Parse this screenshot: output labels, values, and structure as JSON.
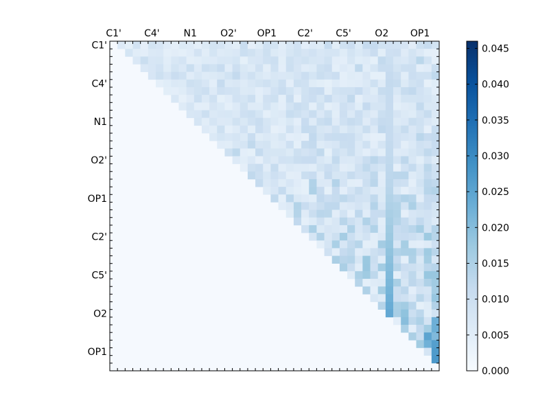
{
  "chart_data": {
    "type": "heatmap",
    "title": "",
    "n": 43,
    "x_tick_labels": [
      "C1'",
      "C4'",
      "N1",
      "O2'",
      "OP1",
      "C2'",
      "C5'",
      "O2",
      "OP1"
    ],
    "y_tick_labels": [
      "C1'",
      "C4'",
      "N1",
      "O2'",
      "OP1",
      "C2'",
      "C5'",
      "O2",
      "OP1"
    ],
    "tick_label_every": 5,
    "upper_triangle_only": true,
    "colormap": "Blues",
    "vmin": 0.0,
    "vmax": 0.046,
    "colorbar_ticks": [
      "0.000",
      "0.005",
      "0.010",
      "0.015",
      "0.020",
      "0.025",
      "0.030",
      "0.035",
      "0.040",
      "0.045"
    ],
    "colorbar_tick_values": [
      0.0,
      0.005,
      0.01,
      0.015,
      0.02,
      0.025,
      0.03,
      0.035,
      0.04,
      0.045
    ],
    "baseline_value": 0.004,
    "row_levels": [
      [
        0.006,
        0.007,
        0.008,
        0.01,
        0.012,
        0.011,
        0.009,
        0.01,
        0.013,
        0.008,
        0.008,
        0.007,
        0.01,
        0.012,
        0.015,
        0.01,
        0.011,
        0.014,
        0.01,
        0.01,
        0.012,
        0.011,
        0.013,
        0.012,
        0.011,
        0.013,
        0.012,
        0.013,
        0.014,
        0.012,
        0.016,
        0.012,
        0.014,
        0.014,
        0.017,
        0.016,
        0.012,
        0.01,
        0.013,
        0.015,
        0.016,
        0.017,
        0.018
      ],
      [
        0.011,
        0.01,
        0.011,
        0.012,
        0.012,
        0.01,
        0.012,
        0.013,
        0.012,
        0.01,
        0.014,
        0.016,
        0.012,
        0.011,
        0.014,
        0.012,
        0.016,
        0.01,
        0.014,
        0.012,
        0.013,
        0.011,
        0.014,
        0.013,
        0.012,
        0.014,
        0.012,
        0.014,
        0.012,
        0.013,
        0.015,
        0.014,
        0.016,
        0.018,
        0.014,
        0.014,
        0.016,
        0.014,
        0.013,
        0.018,
        0.017,
        0.017,
        0.015
      ],
      [
        0.012,
        0.014,
        0.013,
        0.012,
        0.015,
        0.012,
        0.014,
        0.013,
        0.012,
        0.011,
        0.012,
        0.014,
        0.012,
        0.013,
        0.012,
        0.011,
        0.012,
        0.013,
        0.012,
        0.012,
        0.013,
        0.014,
        0.014,
        0.015,
        0.016,
        0.013,
        0.015,
        0.012,
        0.014,
        0.014,
        0.012,
        0.016,
        0.016,
        0.013,
        0.014,
        0.015,
        0.015,
        0.014,
        0.015,
        0.014,
        0.019,
        0.017,
        0.017
      ],
      [
        0.016,
        0.015,
        0.014,
        0.013,
        0.017,
        0.013,
        0.014,
        0.015,
        0.016,
        0.014,
        0.018,
        0.014,
        0.016,
        0.013,
        0.016,
        0.015,
        0.016,
        0.013,
        0.017,
        0.016,
        0.016,
        0.014,
        0.014,
        0.016,
        0.015,
        0.017,
        0.016,
        0.017,
        0.015,
        0.014,
        0.018,
        0.016,
        0.016,
        0.017,
        0.018,
        0.016,
        0.016,
        0.016,
        0.016,
        0.019,
        0.02,
        0.019,
        0.018
      ],
      [
        0.018,
        0.016,
        0.017,
        0.016,
        0.016,
        0.018,
        0.015,
        0.017,
        0.016,
        0.017,
        0.019,
        0.016,
        0.016,
        0.016,
        0.018,
        0.018,
        0.016,
        0.016,
        0.016,
        0.015,
        0.018,
        0.017,
        0.016,
        0.017,
        0.017,
        0.019,
        0.02,
        0.017,
        0.016,
        0.019,
        0.02,
        0.017,
        0.018,
        0.016,
        0.018,
        0.02,
        0.018,
        0.018,
        0.02,
        0.019,
        0.02,
        0.02,
        0.019
      ],
      [
        0.021,
        0.02,
        0.019,
        0.022,
        0.02,
        0.02,
        0.019,
        0.02,
        0.021,
        0.02,
        0.019,
        0.02,
        0.022,
        0.02,
        0.019,
        0.021,
        0.02,
        0.023,
        0.022,
        0.02,
        0.021,
        0.02,
        0.019,
        0.021,
        0.023,
        0.022,
        0.021,
        0.02,
        0.02,
        0.022,
        0.021,
        0.024,
        0.021,
        0.022,
        0.02,
        0.023,
        0.022,
        0.022,
        0.021,
        0.024,
        0.023,
        0.023,
        0.024
      ],
      [
        0.023,
        0.024,
        0.023,
        0.023,
        0.022,
        0.024,
        0.022,
        0.022,
        0.024,
        0.023,
        0.024,
        0.022,
        0.023,
        0.023,
        0.022,
        0.022,
        0.024,
        0.024,
        0.024,
        0.023,
        0.024,
        0.025,
        0.024,
        0.023,
        0.025,
        0.024,
        0.024,
        0.024,
        0.023,
        0.024,
        0.024,
        0.026,
        0.026,
        0.025,
        0.025,
        0.024,
        0.026,
        0.026,
        0.025,
        0.027,
        0.026,
        0.026,
        0.027
      ],
      [
        0.026,
        0.025,
        0.026,
        0.027,
        0.025,
        0.026,
        0.025,
        0.026,
        0.027,
        0.026,
        0.026,
        0.025,
        0.026,
        0.026,
        0.027,
        0.028,
        0.026,
        0.025,
        0.026,
        0.026,
        0.027,
        0.026,
        0.027,
        0.028,
        0.028,
        0.027,
        0.026,
        0.027,
        0.029,
        0.027,
        0.028,
        0.027,
        0.028,
        0.027,
        0.028,
        0.029,
        0.03,
        0.028,
        0.029,
        0.03,
        0.031,
        0.03,
        0.031
      ],
      [
        0.03,
        0.029,
        0.029,
        0.031,
        0.03,
        0.029,
        0.03,
        0.031,
        0.03,
        0.03,
        0.03,
        0.031,
        0.029,
        0.031,
        0.03,
        0.032,
        0.03,
        0.031,
        0.031,
        0.031,
        0.032,
        0.03,
        0.031,
        0.032,
        0.031,
        0.033,
        0.032,
        0.031,
        0.032,
        0.033,
        0.033,
        0.032,
        0.033,
        0.034,
        0.033,
        0.034,
        0.035,
        0.035,
        0.036,
        0.036,
        0.037,
        0.038,
        0.04
      ],
      [
        0.035,
        0.034,
        0.035,
        0.036,
        0.035,
        0.034,
        0.035,
        0.035,
        0.036,
        0.035,
        0.036,
        0.035,
        0.036,
        0.035,
        0.036,
        0.037,
        0.036,
        0.036,
        0.037,
        0.036,
        0.036,
        0.037,
        0.038,
        0.037,
        0.037,
        0.038,
        0.038,
        0.037,
        0.038,
        0.039,
        0.038,
        0.039,
        0.039,
        0.04,
        0.04,
        0.041,
        0.041,
        0.042,
        0.042,
        0.043,
        0.044,
        0.045,
        0.046
      ]
    ],
    "colorbar_range": [
      0.0,
      0.046
    ]
  }
}
